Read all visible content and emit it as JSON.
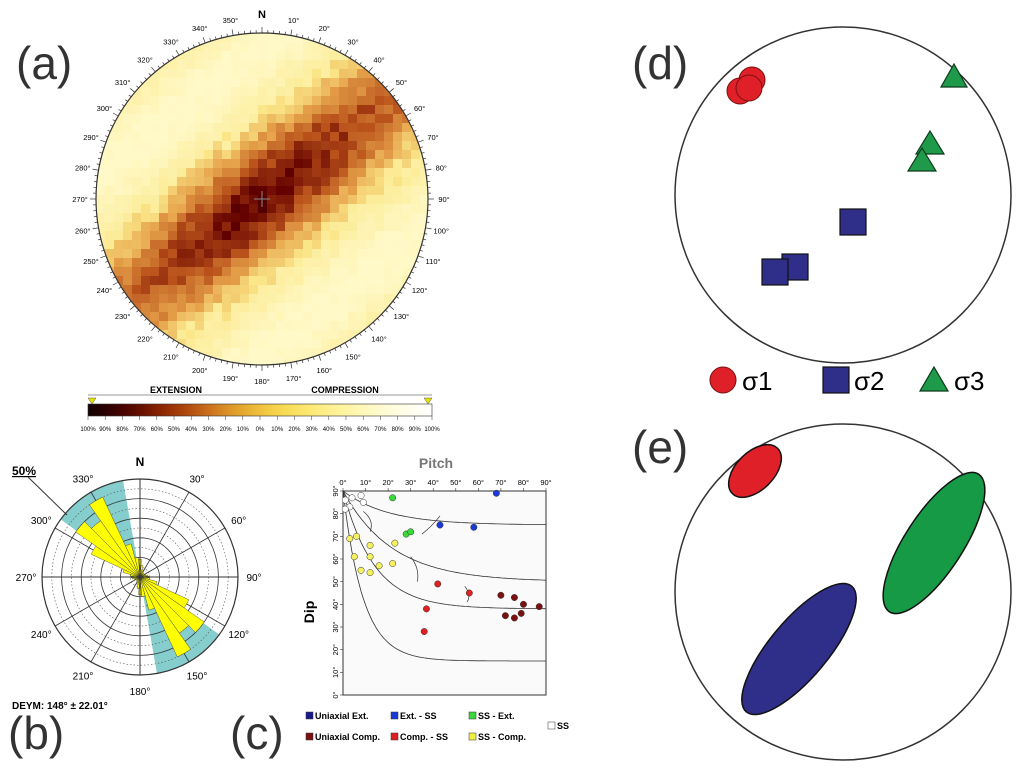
{
  "panel_labels": {
    "a": "(a)",
    "b": "(b)",
    "c": "(c)",
    "d": "(d)",
    "e": "(e)"
  },
  "panel_a": {
    "north_label": "N",
    "ring_ticks": [
      "10°",
      "20°",
      "30°",
      "40°",
      "50°",
      "60°",
      "70°",
      "80°",
      "90°",
      "100°",
      "110°",
      "120°",
      "130°",
      "140°",
      "150°",
      "160°",
      "170°",
      "180°",
      "190°",
      "200°",
      "210°",
      "220°",
      "230°",
      "240°",
      "250°",
      "260°",
      "270°",
      "280°",
      "290°",
      "300°",
      "310°",
      "320°",
      "330°",
      "340°",
      "350°"
    ],
    "colorbar": {
      "left_title": "EXTENSION",
      "right_title": "COMPRESSION",
      "ticks": [
        "100%",
        "90%",
        "80%",
        "70%",
        "60%",
        "50%",
        "40%",
        "30%",
        "20%",
        "10%",
        "0%",
        "10%",
        "20%",
        "30%",
        "40%",
        "50%",
        "60%",
        "70%",
        "80%",
        "90%",
        "100%"
      ],
      "colors": [
        "#140000",
        "#2a0000",
        "#4a0400",
        "#6a1000",
        "#8a2400",
        "#a43c08",
        "#bc5a14",
        "#d07a20",
        "#de9a2a",
        "#eab436",
        "#f4cc44",
        "#f8dc58",
        "#fbe66e",
        "#fdee86",
        "#fef39e",
        "#fff7b6",
        "#fffacc",
        "#fffce0",
        "#fffef0",
        "#ffffff"
      ]
    },
    "heatmap_palette": {
      "dark": "#7a1606",
      "mid": "#b8501a",
      "light": "#e6a24a",
      "pale": "#fff9c8",
      "bg": "#fbe88a"
    }
  },
  "panel_b": {
    "north_label": "N",
    "scale_label": "50%",
    "angle_labels": [
      "30°",
      "60°",
      "90°",
      "120°",
      "150°",
      "180°",
      "210°",
      "240°",
      "270°",
      "300°",
      "330°"
    ],
    "caption": "DEYM: 148° ± 22.01°",
    "rose_color": "#ffff00",
    "sector_color": "#79c8c8",
    "sector_center_deg": 148,
    "sector_half_width_deg": 22.01,
    "rose_petals": [
      {
        "az": 0,
        "len": 0.18
      },
      {
        "az": 10,
        "len": 0.12
      },
      {
        "az": 20,
        "len": 0.08
      },
      {
        "az": 30,
        "len": 0.06
      },
      {
        "az": 40,
        "len": 0.05
      },
      {
        "az": 50,
        "len": 0.05
      },
      {
        "az": 60,
        "len": 0.05
      },
      {
        "az": 70,
        "len": 0.06
      },
      {
        "az": 80,
        "len": 0.08
      },
      {
        "az": 90,
        "len": 0.09
      },
      {
        "az": 100,
        "len": 0.1
      },
      {
        "az": 110,
        "len": 0.18
      },
      {
        "az": 120,
        "len": 0.55
      },
      {
        "az": 130,
        "len": 0.8
      },
      {
        "az": 140,
        "len": 0.7
      },
      {
        "az": 150,
        "len": 0.9
      },
      {
        "az": 160,
        "len": 0.35
      },
      {
        "az": 170,
        "len": 0.2
      },
      {
        "az": 180,
        "len": 0.18
      },
      {
        "az": 190,
        "len": 0.12
      },
      {
        "az": 200,
        "len": 0.08
      },
      {
        "az": 210,
        "len": 0.06
      },
      {
        "az": 220,
        "len": 0.05
      },
      {
        "az": 230,
        "len": 0.05
      },
      {
        "az": 240,
        "len": 0.05
      },
      {
        "az": 250,
        "len": 0.06
      },
      {
        "az": 260,
        "len": 0.08
      },
      {
        "az": 270,
        "len": 0.09
      },
      {
        "az": 280,
        "len": 0.1
      },
      {
        "az": 290,
        "len": 0.18
      },
      {
        "az": 300,
        "len": 0.55
      },
      {
        "az": 310,
        "len": 0.8
      },
      {
        "az": 320,
        "len": 0.7
      },
      {
        "az": 330,
        "len": 0.9
      },
      {
        "az": 340,
        "len": 0.35
      },
      {
        "az": 350,
        "len": 0.2
      }
    ]
  },
  "panel_c": {
    "title": "Pitch",
    "ylabel": "Dip",
    "x_ticks": [
      "0°",
      "10°",
      "20°",
      "30°",
      "40°",
      "50°",
      "60°",
      "70°",
      "80°",
      "90°"
    ],
    "y_ticks": [
      "0°",
      "10°",
      "20°",
      "30°",
      "40°",
      "50°",
      "60°",
      "70°",
      "80°",
      "90°"
    ],
    "legend": [
      {
        "label": "Uniaxial Ext.",
        "color": "#1a1a8c"
      },
      {
        "label": "Ext. - SS",
        "color": "#1a3ad8"
      },
      {
        "label": "SS - Ext.",
        "color": "#3ad83a"
      },
      {
        "label": "SS",
        "color": "#ffffff"
      },
      {
        "label": "Uniaxial Comp.",
        "color": "#7a1010"
      },
      {
        "label": "Comp. - SS",
        "color": "#e02020"
      },
      {
        "label": "SS - Comp.",
        "color": "#f0f040"
      }
    ],
    "points": [
      {
        "pitch": 68,
        "dip": 89,
        "cls": "Ext. - SS"
      },
      {
        "pitch": 43,
        "dip": 75,
        "cls": "Ext. - SS"
      },
      {
        "pitch": 58,
        "dip": 74,
        "cls": "Ext. - SS"
      },
      {
        "pitch": 22,
        "dip": 87,
        "cls": "SS - Ext."
      },
      {
        "pitch": 28,
        "dip": 71,
        "cls": "SS - Ext."
      },
      {
        "pitch": 30,
        "dip": 72,
        "cls": "SS - Ext."
      },
      {
        "pitch": 6,
        "dip": 70,
        "cls": "SS - Comp."
      },
      {
        "pitch": 3,
        "dip": 69,
        "cls": "SS - Comp."
      },
      {
        "pitch": 12,
        "dip": 66,
        "cls": "SS - Comp."
      },
      {
        "pitch": 23,
        "dip": 67,
        "cls": "SS - Comp."
      },
      {
        "pitch": 5,
        "dip": 61,
        "cls": "SS - Comp."
      },
      {
        "pitch": 12,
        "dip": 61,
        "cls": "SS - Comp."
      },
      {
        "pitch": 16,
        "dip": 57,
        "cls": "SS - Comp."
      },
      {
        "pitch": 22,
        "dip": 58,
        "cls": "SS - Comp."
      },
      {
        "pitch": 8,
        "dip": 55,
        "cls": "SS - Comp."
      },
      {
        "pitch": 12,
        "dip": 54,
        "cls": "SS - Comp."
      },
      {
        "pitch": 42,
        "dip": 49,
        "cls": "Comp. - SS"
      },
      {
        "pitch": 56,
        "dip": 45,
        "cls": "Comp. - SS"
      },
      {
        "pitch": 37,
        "dip": 38,
        "cls": "Comp. - SS"
      },
      {
        "pitch": 36,
        "dip": 28,
        "cls": "Comp. - SS"
      },
      {
        "pitch": 70,
        "dip": 44,
        "cls": "Uniaxial Comp."
      },
      {
        "pitch": 76,
        "dip": 43,
        "cls": "Uniaxial Comp."
      },
      {
        "pitch": 80,
        "dip": 40,
        "cls": "Uniaxial Comp."
      },
      {
        "pitch": 87,
        "dip": 39,
        "cls": "Uniaxial Comp."
      },
      {
        "pitch": 72,
        "dip": 35,
        "cls": "Uniaxial Comp."
      },
      {
        "pitch": 76,
        "dip": 34,
        "cls": "Uniaxial Comp."
      },
      {
        "pitch": 79,
        "dip": 36,
        "cls": "Uniaxial Comp."
      },
      {
        "pitch": 1,
        "dip": 86,
        "cls": "SS"
      },
      {
        "pitch": 4,
        "dip": 87,
        "cls": "SS"
      },
      {
        "pitch": 8,
        "dip": 88,
        "cls": "SS"
      },
      {
        "pitch": 3,
        "dip": 83,
        "cls": "SS"
      },
      {
        "pitch": 9,
        "dip": 85,
        "cls": "SS"
      },
      {
        "pitch": 1,
        "dip": 82,
        "cls": "SS"
      }
    ]
  },
  "panel_d": {
    "legend": [
      {
        "symbol": "circle",
        "label": "σ1",
        "color": "#e02028"
      },
      {
        "symbol": "square",
        "label": "σ2",
        "color": "#2f2f8a"
      },
      {
        "symbol": "triangle",
        "label": "σ3",
        "color": "#1f9a4a"
      }
    ]
  },
  "panel_e": {
    "ellipses": [
      {
        "name": "sigma1-ellipse",
        "color": "#e02028"
      },
      {
        "name": "sigma3-ellipse",
        "color": "#169a46"
      },
      {
        "name": "sigma2-ellipse",
        "color": "#2f2f8a"
      }
    ]
  }
}
